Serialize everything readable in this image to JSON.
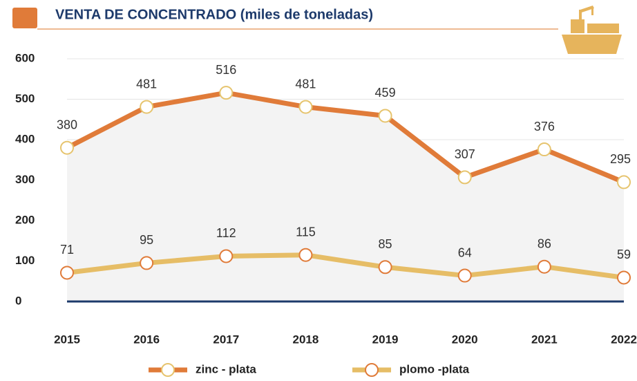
{
  "chart_data": {
    "type": "line",
    "title": "VENTA DE CONCENTRADO (miles de toneladas)",
    "categories": [
      "2015",
      "2016",
      "2017",
      "2018",
      "2019",
      "2020",
      "2021",
      "2022"
    ],
    "series": [
      {
        "name": "zinc - plata",
        "color": "#e07b39",
        "marker_color": "#e6c46e",
        "values": [
          380,
          481,
          516,
          481,
          459,
          307,
          376,
          295
        ]
      },
      {
        "name": "plomo -plata",
        "color": "#e6bd66",
        "marker_color": "#e07b39",
        "values": [
          71,
          95,
          112,
          115,
          85,
          64,
          86,
          59
        ]
      }
    ],
    "ylim": [
      0,
      600
    ],
    "yticks": [
      0,
      100,
      200,
      300,
      400,
      500,
      600
    ],
    "grid": true,
    "legend": "bottom"
  }
}
